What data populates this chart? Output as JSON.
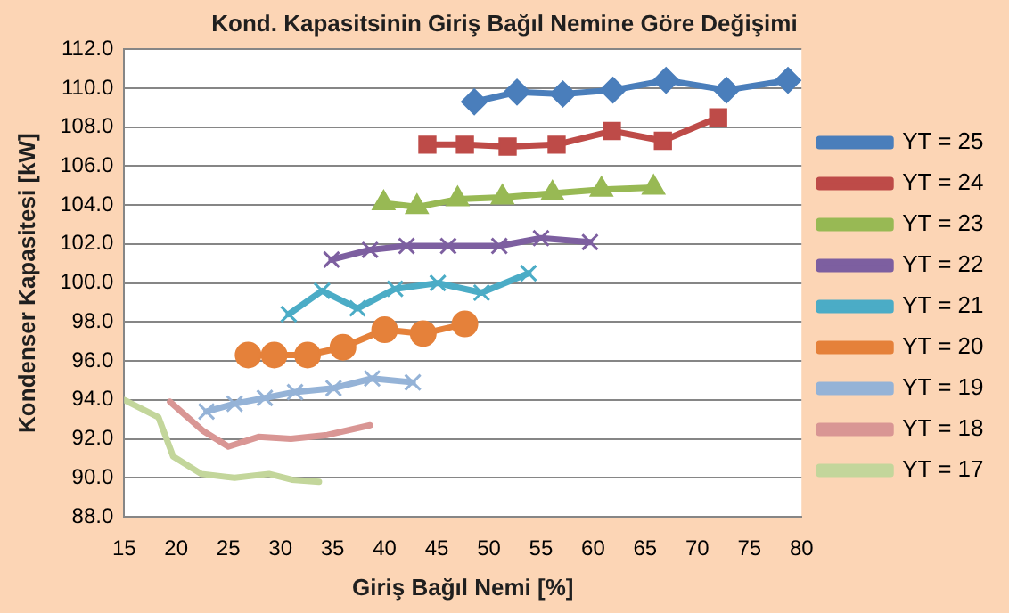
{
  "chart_data": {
    "type": "line",
    "title": "Kond. Kapasitsinin Giriş Bağıl Nemine Göre Değişimi",
    "xlabel": "Giriş Bağıl Nemi [%]",
    "ylabel": "Kondenser Kapasitesi [kW]",
    "xlim": [
      15,
      80
    ],
    "xticks": [
      15,
      20,
      25,
      30,
      35,
      40,
      45,
      50,
      55,
      60,
      65,
      70,
      75,
      80
    ],
    "ylim": [
      88,
      112
    ],
    "yticks": [
      {
        "value": 88,
        "label": "88.0"
      },
      {
        "value": 90,
        "label": "90.0"
      },
      {
        "value": 92,
        "label": "92.0"
      },
      {
        "value": 94,
        "label": "94.0"
      },
      {
        "value": 96,
        "label": "96.0"
      },
      {
        "value": 98,
        "label": "98.0"
      },
      {
        "value": 100,
        "label": "100.0"
      },
      {
        "value": 102,
        "label": "102.0"
      },
      {
        "value": 104,
        "label": "104.0"
      },
      {
        "value": 106,
        "label": "106.0"
      },
      {
        "value": 108,
        "label": "108.0"
      },
      {
        "value": 110,
        "label": "110.0"
      },
      {
        "value": 112,
        "label": "112.0"
      }
    ],
    "grid": "y",
    "legend": "right",
    "line_style": "solid",
    "series": [
      {
        "name": "YT = 25",
        "color": "#4a7ebb",
        "marker": "diamond",
        "x": [
          48.6,
          52.7,
          57.1,
          61.9,
          67.0,
          72.8,
          78.7
        ],
        "values": [
          109.3,
          109.8,
          109.7,
          109.9,
          110.4,
          109.9,
          110.4
        ]
      },
      {
        "name": "YT = 24",
        "color": "#be4b48",
        "marker": "square",
        "x": [
          44.1,
          47.7,
          51.8,
          56.5,
          61.8,
          66.7,
          72.0
        ],
        "values": [
          107.1,
          107.1,
          107.0,
          107.1,
          107.8,
          107.3,
          108.5
        ]
      },
      {
        "name": "YT = 23",
        "color": "#98b954",
        "marker": "triangle",
        "x": [
          39.9,
          43.1,
          47.0,
          51.3,
          56.1,
          60.8,
          65.8
        ],
        "values": [
          104.1,
          103.9,
          104.3,
          104.4,
          104.6,
          104.8,
          104.9
        ]
      },
      {
        "name": "YT = 22",
        "color": "#7d5fa0",
        "marker": "cross",
        "x": [
          34.9,
          38.6,
          42.1,
          46.1,
          51.0,
          55.0,
          59.7
        ],
        "values": [
          101.2,
          101.7,
          101.9,
          101.9,
          101.9,
          102.3,
          102.1
        ]
      },
      {
        "name": "YT = 21",
        "color": "#4bacc6",
        "marker": "cross",
        "x": [
          30.8,
          34.0,
          37.4,
          41.0,
          45.1,
          49.3,
          53.8
        ],
        "values": [
          98.4,
          99.6,
          98.7,
          99.7,
          100.0,
          99.5,
          100.5
        ]
      },
      {
        "name": "YT = 20",
        "color": "#e5813a",
        "marker": "circle",
        "x": [
          26.9,
          29.4,
          32.6,
          36.0,
          40.0,
          43.7,
          47.7
        ],
        "values": [
          96.3,
          96.3,
          96.3,
          96.7,
          97.6,
          97.4,
          97.9
        ]
      },
      {
        "name": "YT = 19",
        "color": "#95b3d7",
        "marker": "cross",
        "x": [
          22.9,
          25.6,
          28.5,
          31.4,
          35.1,
          38.8,
          42.7
        ],
        "values": [
          93.4,
          93.8,
          94.1,
          94.4,
          94.6,
          95.1,
          94.9
        ]
      },
      {
        "name": "YT = 18",
        "color": "#d99694",
        "marker": "none",
        "x": [
          19.4,
          22.6,
          25.0,
          27.9,
          31.0,
          34.5,
          38.6
        ],
        "values": [
          93.9,
          92.4,
          91.6,
          92.1,
          92.0,
          92.2,
          92.7
        ]
      },
      {
        "name": "YT = 17",
        "color": "#c3d69b",
        "marker": "none",
        "x": [
          15.0,
          18.3,
          19.7,
          22.4,
          25.6,
          28.9,
          31.1,
          33.7
        ],
        "values": [
          94.0,
          93.1,
          91.1,
          90.2,
          90.0,
          90.2,
          89.9,
          89.8
        ]
      }
    ]
  }
}
